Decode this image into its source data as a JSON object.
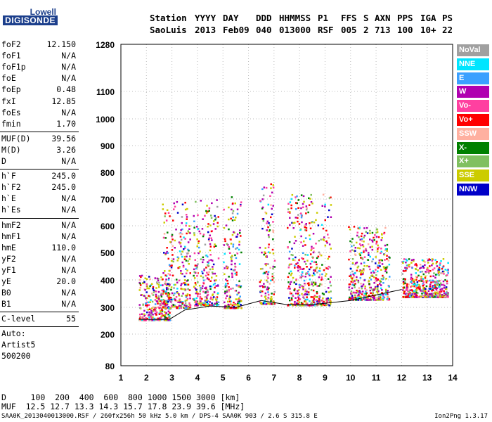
{
  "logo": {
    "line1": "Lowell",
    "line2": "DIGISONDE"
  },
  "header": {
    "row1": [
      "Station",
      "YYYY",
      "DAY",
      "DDD",
      "HHMMSS",
      "P1",
      "FFS",
      "S",
      "AXN",
      "PPS",
      "IGA",
      "PS"
    ],
    "row2": [
      "SaoLuis",
      "2013",
      "Feb09",
      "040",
      "013000",
      "RSF",
      "005",
      "2",
      "713",
      "100",
      "10+",
      "22"
    ]
  },
  "params_group1": [
    {
      "name": "foF2",
      "value": "12.150"
    },
    {
      "name": "foF1",
      "value": "N/A"
    },
    {
      "name": "foF1p",
      "value": "N/A"
    },
    {
      "name": "foE",
      "value": "N/A"
    },
    {
      "name": "foEp",
      "value": "0.48"
    },
    {
      "name": "fxI",
      "value": "12.85"
    },
    {
      "name": "foEs",
      "value": "N/A"
    },
    {
      "name": "fmin",
      "value": "1.70"
    }
  ],
  "params_group2": [
    {
      "name": "MUF(D)",
      "value": "39.56"
    },
    {
      "name": "M(D)",
      "value": "3.26"
    },
    {
      "name": "D",
      "value": "N/A"
    }
  ],
  "params_group3": [
    {
      "name": "h`F",
      "value": "245.0"
    },
    {
      "name": "h`F2",
      "value": "245.0"
    },
    {
      "name": "h`E",
      "value": "N/A"
    },
    {
      "name": "h`Es",
      "value": "N/A"
    }
  ],
  "params_group4": [
    {
      "name": "hmF2",
      "value": "N/A"
    },
    {
      "name": "hmF1",
      "value": "N/A"
    },
    {
      "name": "hmE",
      "value": "110.0"
    },
    {
      "name": "yF2",
      "value": "N/A"
    },
    {
      "name": "yF1",
      "value": "N/A"
    },
    {
      "name": "yE",
      "value": "20.0"
    },
    {
      "name": "B0",
      "value": "N/A"
    },
    {
      "name": "B1",
      "value": "N/A"
    }
  ],
  "clevel": {
    "name": "C-level",
    "value": "55"
  },
  "auto_notes": [
    "Auto:",
    "Artist5",
    "500200"
  ],
  "bottom_table": {
    "row1": "D     100  200  400  600  800 1000 1500 3000 [km]",
    "row2": "MUF  12.5 12.7 13.3 14.3 15.7 17.8 23.9 39.6 [MHz]"
  },
  "footer": {
    "left": "SAA0K_2013040013000.RSF / 260fx256h 50 kHz 5.0 km / DPS-4 SAA0K 903 / 2.6 S 315.8 E",
    "right": "Ion2Png 1.3.17"
  },
  "legend": [
    {
      "label": "NoVal",
      "color": "#a0a0a0"
    },
    {
      "label": "NNE",
      "color": "#00e5ff"
    },
    {
      "label": "E",
      "color": "#3aa0ff"
    },
    {
      "label": "W",
      "color": "#b000b0"
    },
    {
      "label": "Vo-",
      "color": "#ff40a0"
    },
    {
      "label": "Vo+",
      "color": "#ff0000"
    },
    {
      "label": "SSW",
      "color": "#ffb0a0"
    },
    {
      "label": "X-",
      "color": "#008000"
    },
    {
      "label": "X+",
      "color": "#80c060"
    },
    {
      "label": "SSE",
      "color": "#cccc00"
    },
    {
      "label": "NNW",
      "color": "#0000c8"
    }
  ],
  "chart_data": {
    "type": "scatter",
    "xlim": [
      1,
      14
    ],
    "ylim": [
      80,
      1280
    ],
    "x_ticks": [
      1,
      2,
      3,
      4,
      5,
      6,
      7,
      8,
      9,
      10,
      11,
      12,
      13,
      14
    ],
    "y_ticks": [
      80,
      200,
      300,
      400,
      500,
      600,
      700,
      800,
      900,
      1000,
      1100,
      1280
    ],
    "grid": true,
    "legend_position": "right",
    "trace_line": {
      "x": [
        1.7,
        2.9,
        3.5,
        4.5,
        5.5,
        6.5,
        7.5,
        8.5,
        9.5,
        10.0,
        11.0,
        12.0
      ],
      "y": [
        255,
        255,
        290,
        305,
        300,
        325,
        310,
        310,
        320,
        325,
        345,
        365
      ]
    },
    "echo_clusters": [
      {
        "x0": 1.7,
        "x1": 2.9,
        "y0": 255,
        "y1": 420
      },
      {
        "x0": 2.6,
        "x1": 3.7,
        "y0": 300,
        "y1": 700
      },
      {
        "x0": 3.8,
        "x1": 4.8,
        "y0": 310,
        "y1": 700
      },
      {
        "x0": 5.0,
        "x1": 5.7,
        "y0": 300,
        "y1": 720
      },
      {
        "x0": 6.4,
        "x1": 7.0,
        "y0": 315,
        "y1": 760
      },
      {
        "x0": 7.5,
        "x1": 9.2,
        "y0": 310,
        "y1": 720
      },
      {
        "x0": 9.9,
        "x1": 11.5,
        "y0": 330,
        "y1": 600
      },
      {
        "x0": 12.0,
        "x1": 13.8,
        "y0": 340,
        "y1": 480
      }
    ]
  }
}
